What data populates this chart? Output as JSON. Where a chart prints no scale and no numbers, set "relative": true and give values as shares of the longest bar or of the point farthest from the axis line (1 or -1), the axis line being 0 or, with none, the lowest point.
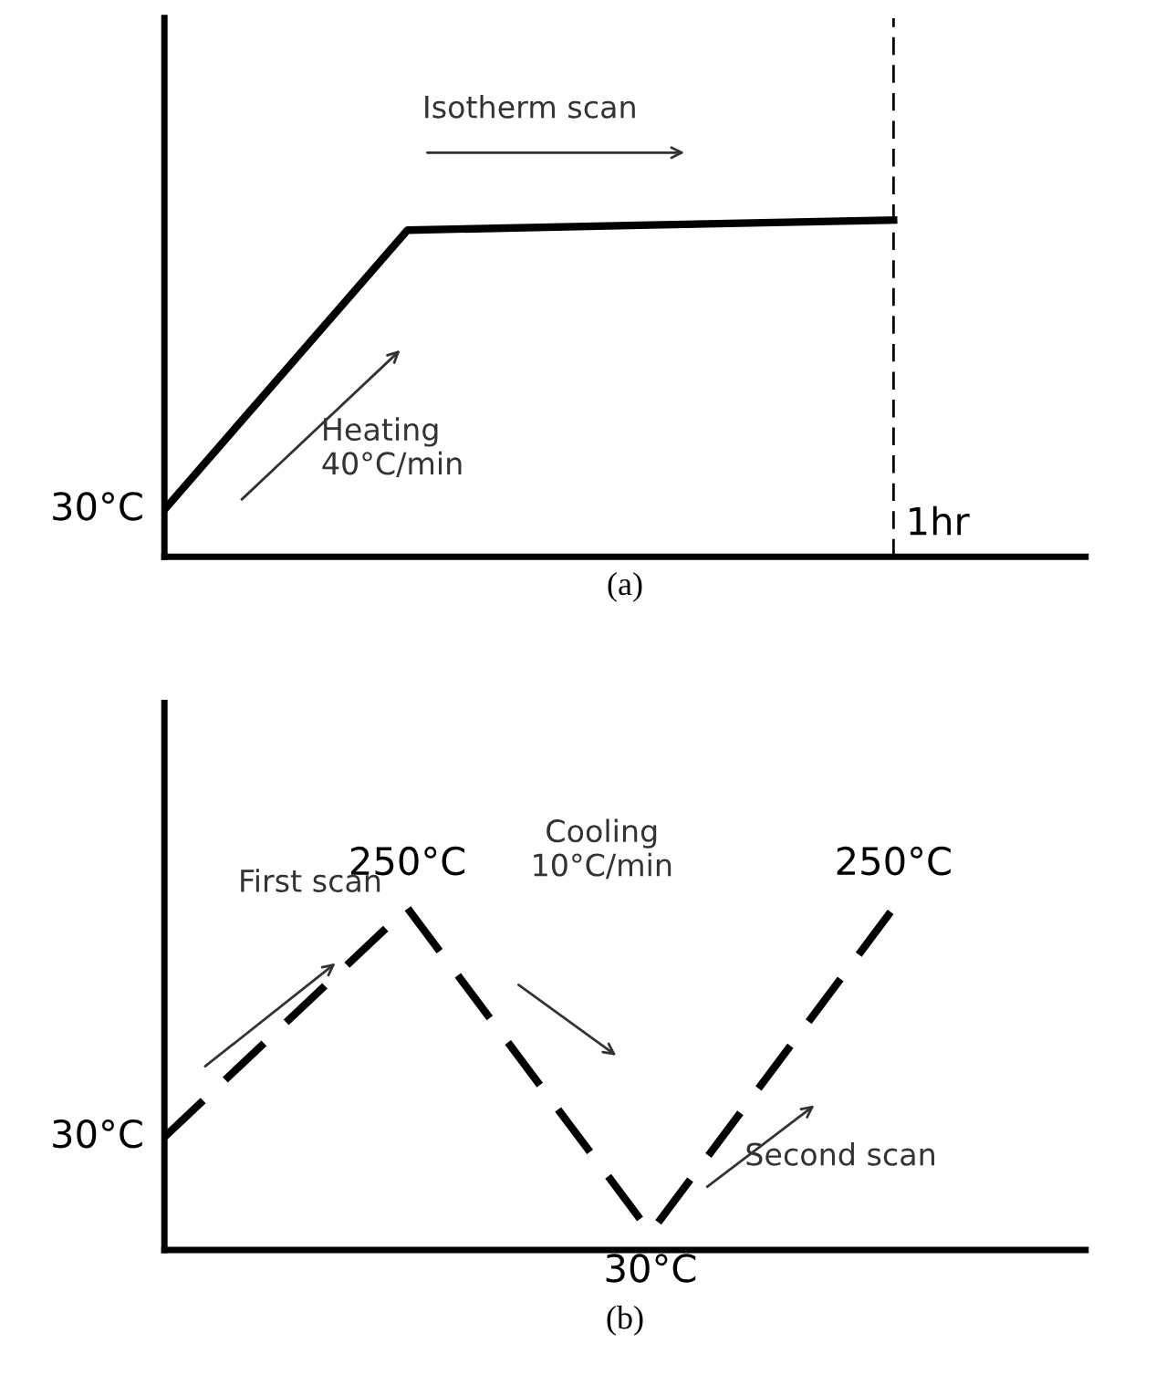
{
  "chart_data": [
    {
      "type": "line",
      "relative": true,
      "xlabel": "(a)",
      "categories": [
        null,
        null,
        null,
        null
      ],
      "line_style": "solid",
      "marker": "none",
      "series": [
        {
          "color": "#000000",
          "values": [
            0.14,
            0.97,
            0.985,
            1
          ]
        }
      ],
      "value_labels": [
        "30°C",
        null,
        null,
        null
      ],
      "annotations": [
        "Isotherm scan",
        "Heating\n40°C/min",
        "1hr"
      ]
    },
    {
      "type": "line",
      "relative": true,
      "xlabel": "(b)",
      "categories": [
        null,
        null,
        null,
        null
      ],
      "line_style": "dashed",
      "marker": "none",
      "series": [
        {
          "color": "#000000",
          "values": [
            0.33,
            1,
            0.05,
            1
          ]
        }
      ],
      "value_labels": [
        "30°C",
        "250°C",
        "30°C",
        "250°C"
      ],
      "annotations": [
        "First scan",
        "Cooling\n10°C/min",
        "Second scan"
      ]
    }
  ]
}
